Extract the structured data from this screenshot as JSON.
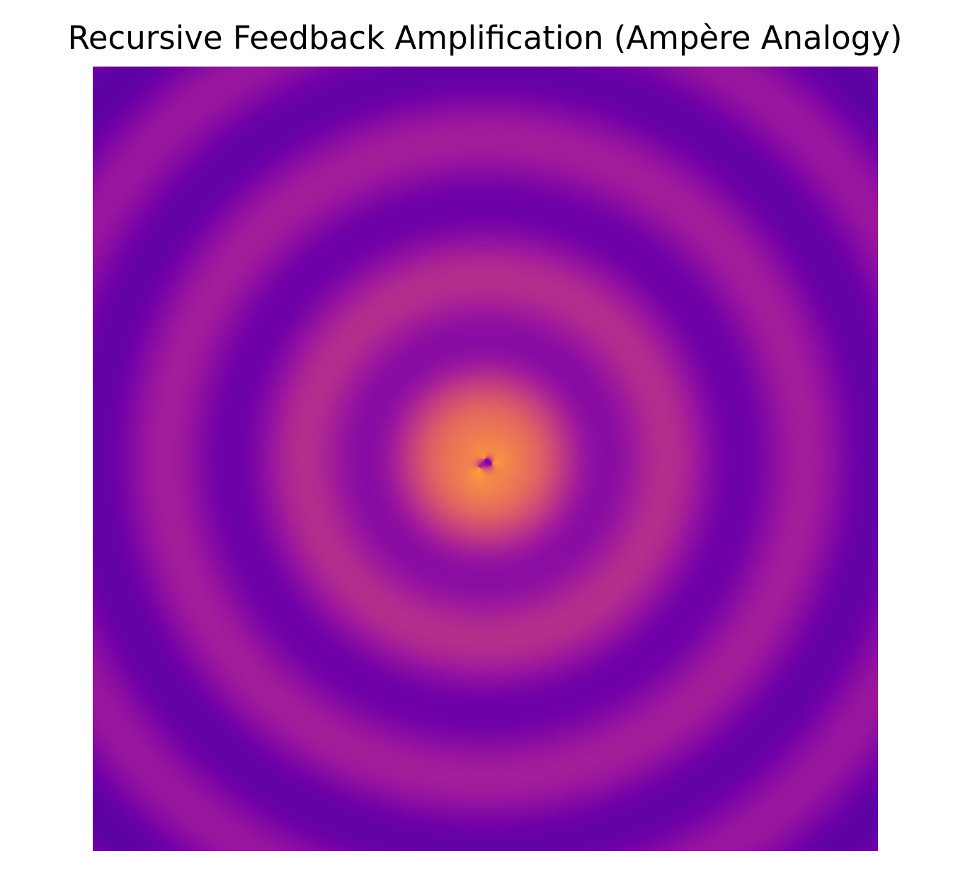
{
  "chart": {
    "title": "Recursive Feedback Amplification (Ampère Analogy)"
  },
  "chart_data": {
    "type": "heatmap",
    "title": "Recursive Feedback Amplification (Ampère Analogy)",
    "xlabel": "",
    "ylabel": "",
    "axes_visible": false,
    "grid": false,
    "legend": "none",
    "colorbar": false,
    "colormap": "plasma",
    "colormap_stops": [
      "#0d0887",
      "#46039f",
      "#7201a8",
      "#9c179e",
      "#bd3786",
      "#d8576b",
      "#ed7953",
      "#fb9f3a",
      "#fdca26",
      "#f0f921"
    ],
    "pattern": "concentric ripples around a central singularity, interference bands brightest near the center",
    "sources": [
      {
        "x": 0.0,
        "y": 0.0,
        "k": 0.9,
        "weight": 1.0
      },
      {
        "x": 0.35,
        "y": -0.25,
        "k": 0.9,
        "weight": 0.6
      },
      {
        "x": -0.3,
        "y": -0.45,
        "k": 0.9,
        "weight": 0.45
      }
    ],
    "domain": {
      "xlim": [
        -20,
        20
      ],
      "ylim": [
        -20,
        20
      ]
    },
    "value_range": [
      0,
      1
    ]
  }
}
